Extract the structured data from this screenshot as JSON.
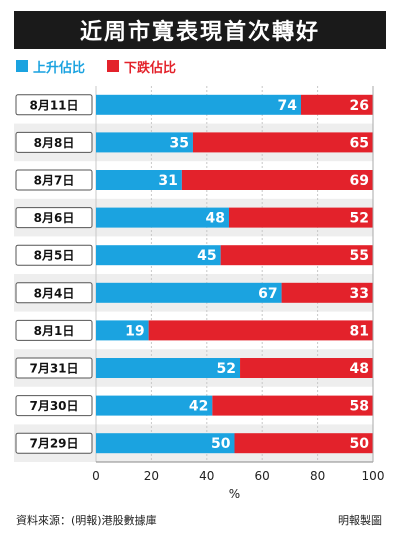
{
  "title": "近周市寬表現首次轉好",
  "legend": {
    "up_label": "上升佔比",
    "down_label": "下跌佔比"
  },
  "colors": {
    "up": "#1ba3e0",
    "down": "#e3222b",
    "grid": "#c8c8c8",
    "row_band": "#eeeeee"
  },
  "footer": {
    "source": "資料來源：(明報)港股數據庫",
    "credit": "明報製圖"
  },
  "chart_data": {
    "type": "bar",
    "orientation": "horizontal",
    "stacked": true,
    "categories": [
      "8月11日",
      "8月8日",
      "8月7日",
      "8月6日",
      "8月5日",
      "8月4日",
      "8月1日",
      "7月31日",
      "7月30日",
      "7月29日"
    ],
    "series": [
      {
        "name": "上升佔比",
        "values": [
          74,
          35,
          31,
          48,
          45,
          67,
          19,
          52,
          42,
          50
        ]
      },
      {
        "name": "下跌佔比",
        "values": [
          26,
          65,
          69,
          52,
          55,
          33,
          81,
          48,
          58,
          50
        ]
      }
    ],
    "xlim": [
      0,
      100
    ],
    "xticks": [
      0,
      20,
      40,
      60,
      80,
      100
    ],
    "xlabel": "%",
    "grid": true,
    "legend_position": "top-left"
  }
}
